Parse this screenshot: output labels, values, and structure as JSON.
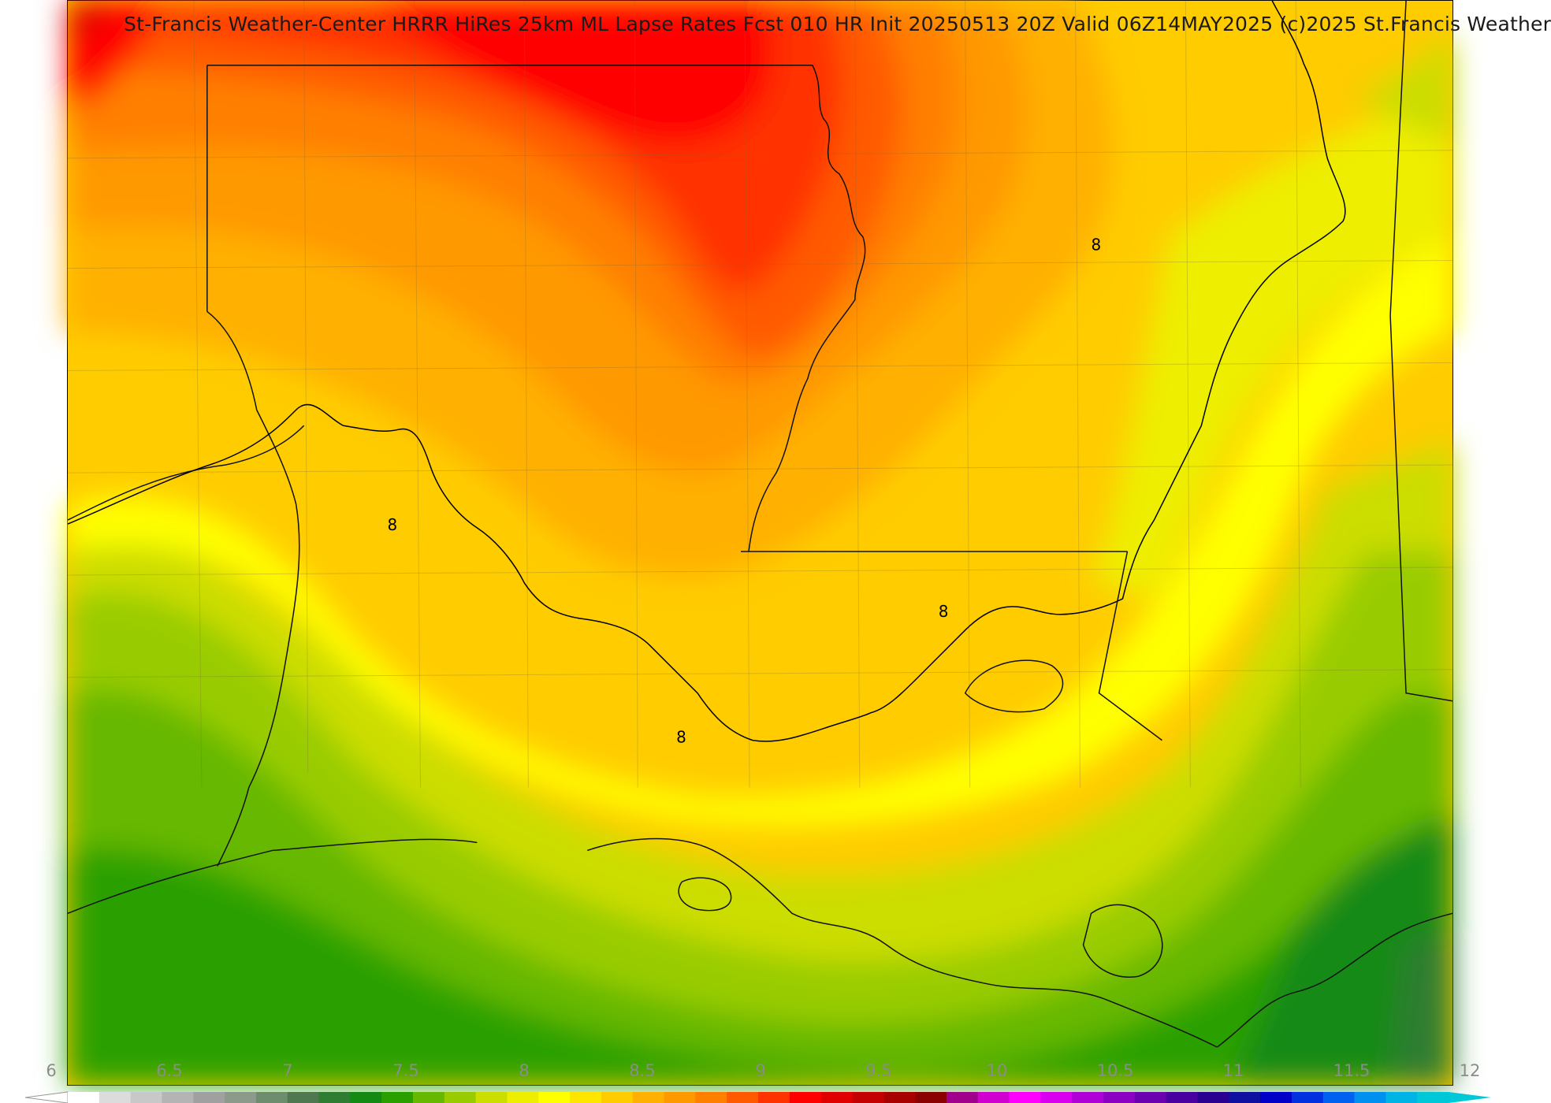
{
  "header": {
    "title": "St-Francis Weather-Center HRRR HiRes 25km ML Lapse Rates  Fcst 010 HR Init 20250513 20Z  Valid 06Z14MAY2025    (c)2025 St.Francis Weather"
  },
  "map": {
    "contour_labels": [
      "8",
      "8",
      "8",
      "8"
    ]
  },
  "colorbar": {
    "ticks": [
      "6",
      "6.5",
      "7",
      "7.5",
      "8",
      "8.5",
      "9",
      "9.5",
      "10",
      "10.5",
      "11",
      "11.5",
      "12"
    ],
    "colors": [
      "#ffffff",
      "#dcdcdc",
      "#c8c8c8",
      "#b4b4b4",
      "#a0a0a0",
      "#8c9a8c",
      "#6e8c6e",
      "#507850",
      "#2e7d32",
      "#138a13",
      "#2aa000",
      "#66b800",
      "#99cc00",
      "#ccdd00",
      "#eeee00",
      "#ffff00",
      "#ffe600",
      "#ffcc00",
      "#ffb000",
      "#ff9900",
      "#ff7f00",
      "#ff5a00",
      "#ff3300",
      "#ff0000",
      "#e00000",
      "#c40000",
      "#a80000",
      "#8b0000",
      "#a0008c",
      "#d000d0",
      "#ff00ff",
      "#d900f0",
      "#b000d8",
      "#8c00c4",
      "#6a00b0",
      "#4a00a0",
      "#2a0090",
      "#1010a0",
      "#0000c8",
      "#0030e0",
      "#0060f0",
      "#0090f0",
      "#00b4e6",
      "#00c8d8"
    ],
    "extend_low_color": "#ffffff",
    "extend_high_color": "#00c8d8"
  }
}
